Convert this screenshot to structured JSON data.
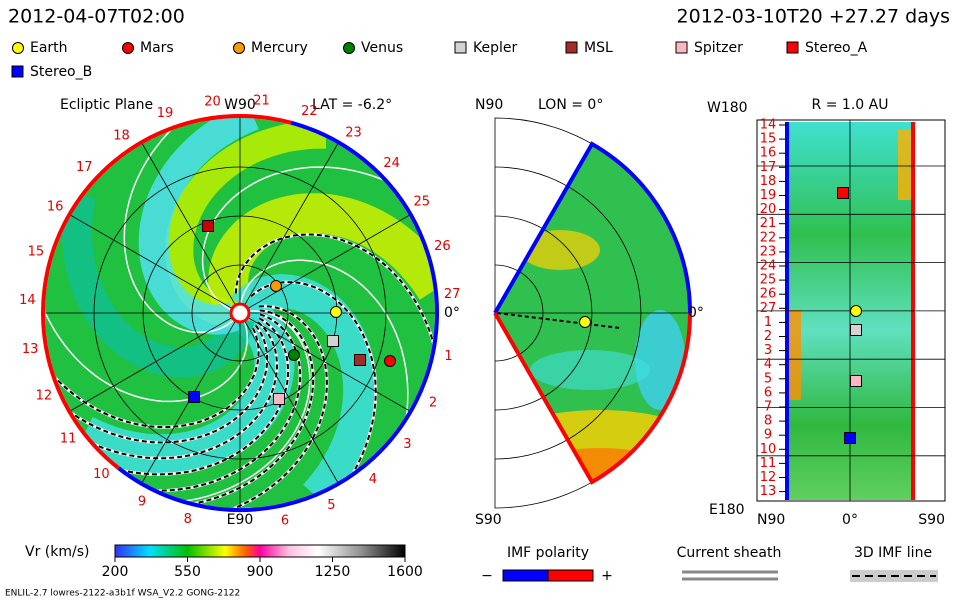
{
  "header": {
    "left": "2012-04-07T02:00",
    "right": "2012-03-10T20 +27.27 days"
  },
  "legend": [
    {
      "label": "Earth",
      "color": "#ffff00",
      "shape": "circle"
    },
    {
      "label": "Mars",
      "color": "#ff0000",
      "shape": "circle"
    },
    {
      "label": "Mercury",
      "color": "#ff9900",
      "shape": "circle"
    },
    {
      "label": "Venus",
      "color": "#008000",
      "shape": "circle"
    },
    {
      "label": "Kepler",
      "color": "#d3d3d3",
      "shape": "square"
    },
    {
      "label": "MSL",
      "color": "#a52a2a",
      "shape": "square"
    },
    {
      "label": "Spitzer",
      "color": "#ffb6c1",
      "shape": "square"
    },
    {
      "label": "Stereo_A",
      "color": "#ff0000",
      "shape": "square"
    },
    {
      "label": "Stereo_B",
      "color": "#0000ff",
      "shape": "square"
    }
  ],
  "ecliptic": {
    "title": "Ecliptic Plane",
    "top": "W90",
    "bottom": "E90",
    "lat": "LAT = -6.2°",
    "right": "0°",
    "day_labels": [
      "27",
      "26",
      "25",
      "24",
      "23",
      "22",
      "21",
      "20",
      "19",
      "18",
      "17",
      "16",
      "15",
      "14",
      "13",
      "12",
      "11",
      "10",
      "9",
      "8",
      "6",
      "5",
      "4",
      "3",
      "2",
      "1"
    ]
  },
  "meridional": {
    "top": "N90",
    "bottom": "S90",
    "lon": "LON = 0°",
    "right": "0°"
  },
  "radial": {
    "title": "R = 1.0 AU",
    "top_left": "W180",
    "bottom_left": "E180",
    "bottom": [
      "N90",
      "0°",
      "S90"
    ],
    "rows": [
      "14",
      "15",
      "16",
      "17",
      "18",
      "19",
      "20",
      "21",
      "22",
      "23",
      "24",
      "25",
      "26",
      "27",
      "1",
      "2",
      "3",
      "4",
      "5",
      "6",
      "7",
      "8",
      "9",
      "10",
      "11",
      "12",
      "13"
    ]
  },
  "colorbar": {
    "label": "Vr (km/s)",
    "lim": [
      200,
      1600
    ],
    "ticks": [
      200,
      550,
      900,
      1250,
      1600
    ]
  },
  "imf": {
    "title": "IMF polarity",
    "minus": "−",
    "plus": "+"
  },
  "sheath": {
    "title": "Current sheath"
  },
  "imf3d": {
    "title": "3D IMF line"
  },
  "footer": "ENLIL-2.7 lowres-2122-a3b1f WSA_V2.2 GONG-2122"
}
